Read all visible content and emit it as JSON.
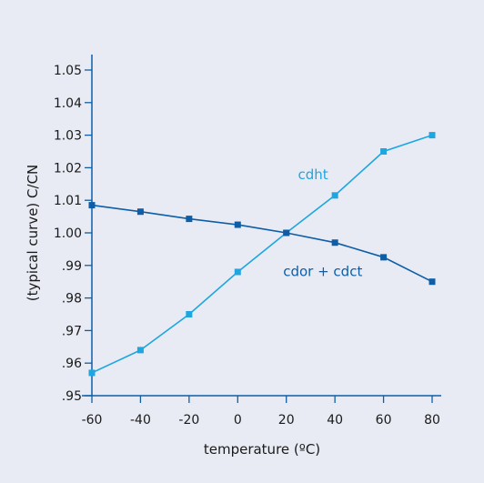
{
  "chart_data": {
    "type": "line",
    "xlabel": "temperature (ºC)",
    "ylabel": "(typical curve) C/CN",
    "xlim": [
      -60,
      80
    ],
    "ylim": [
      0.95,
      1.05
    ],
    "x_ticks": [
      -60,
      -40,
      -20,
      0,
      20,
      40,
      60,
      80
    ],
    "x_tick_labels": [
      "-60",
      "-40",
      "-20",
      "0",
      "20",
      "40",
      "60",
      "80"
    ],
    "y_ticks": [
      0.95,
      0.96,
      0.97,
      0.98,
      0.99,
      1.0,
      1.01,
      1.02,
      1.03,
      1.04,
      1.05
    ],
    "y_tick_labels": [
      ".95",
      ".96",
      ".97",
      ".98",
      ".99",
      "1.00",
      "1.01",
      "1.02",
      "1.03",
      "1.04",
      "1.05"
    ],
    "grid": false,
    "legend": "none (series labeled directly on chart)",
    "series": [
      {
        "name": "cdht",
        "color": "#1ea6e0",
        "x": [
          -60,
          -40,
          -20,
          0,
          20,
          40,
          60,
          80
        ],
        "y": [
          0.957,
          0.964,
          0.975,
          0.988,
          1.0,
          1.0115,
          1.025,
          1.03
        ]
      },
      {
        "name": "cdor + cdct",
        "color": "#0d5ea6",
        "x": [
          -60,
          -40,
          -20,
          0,
          20,
          40,
          60,
          80
        ],
        "y": [
          1.0085,
          1.0065,
          1.0043,
          1.0025,
          1.0,
          0.997,
          0.9925,
          0.985
        ]
      }
    ]
  }
}
